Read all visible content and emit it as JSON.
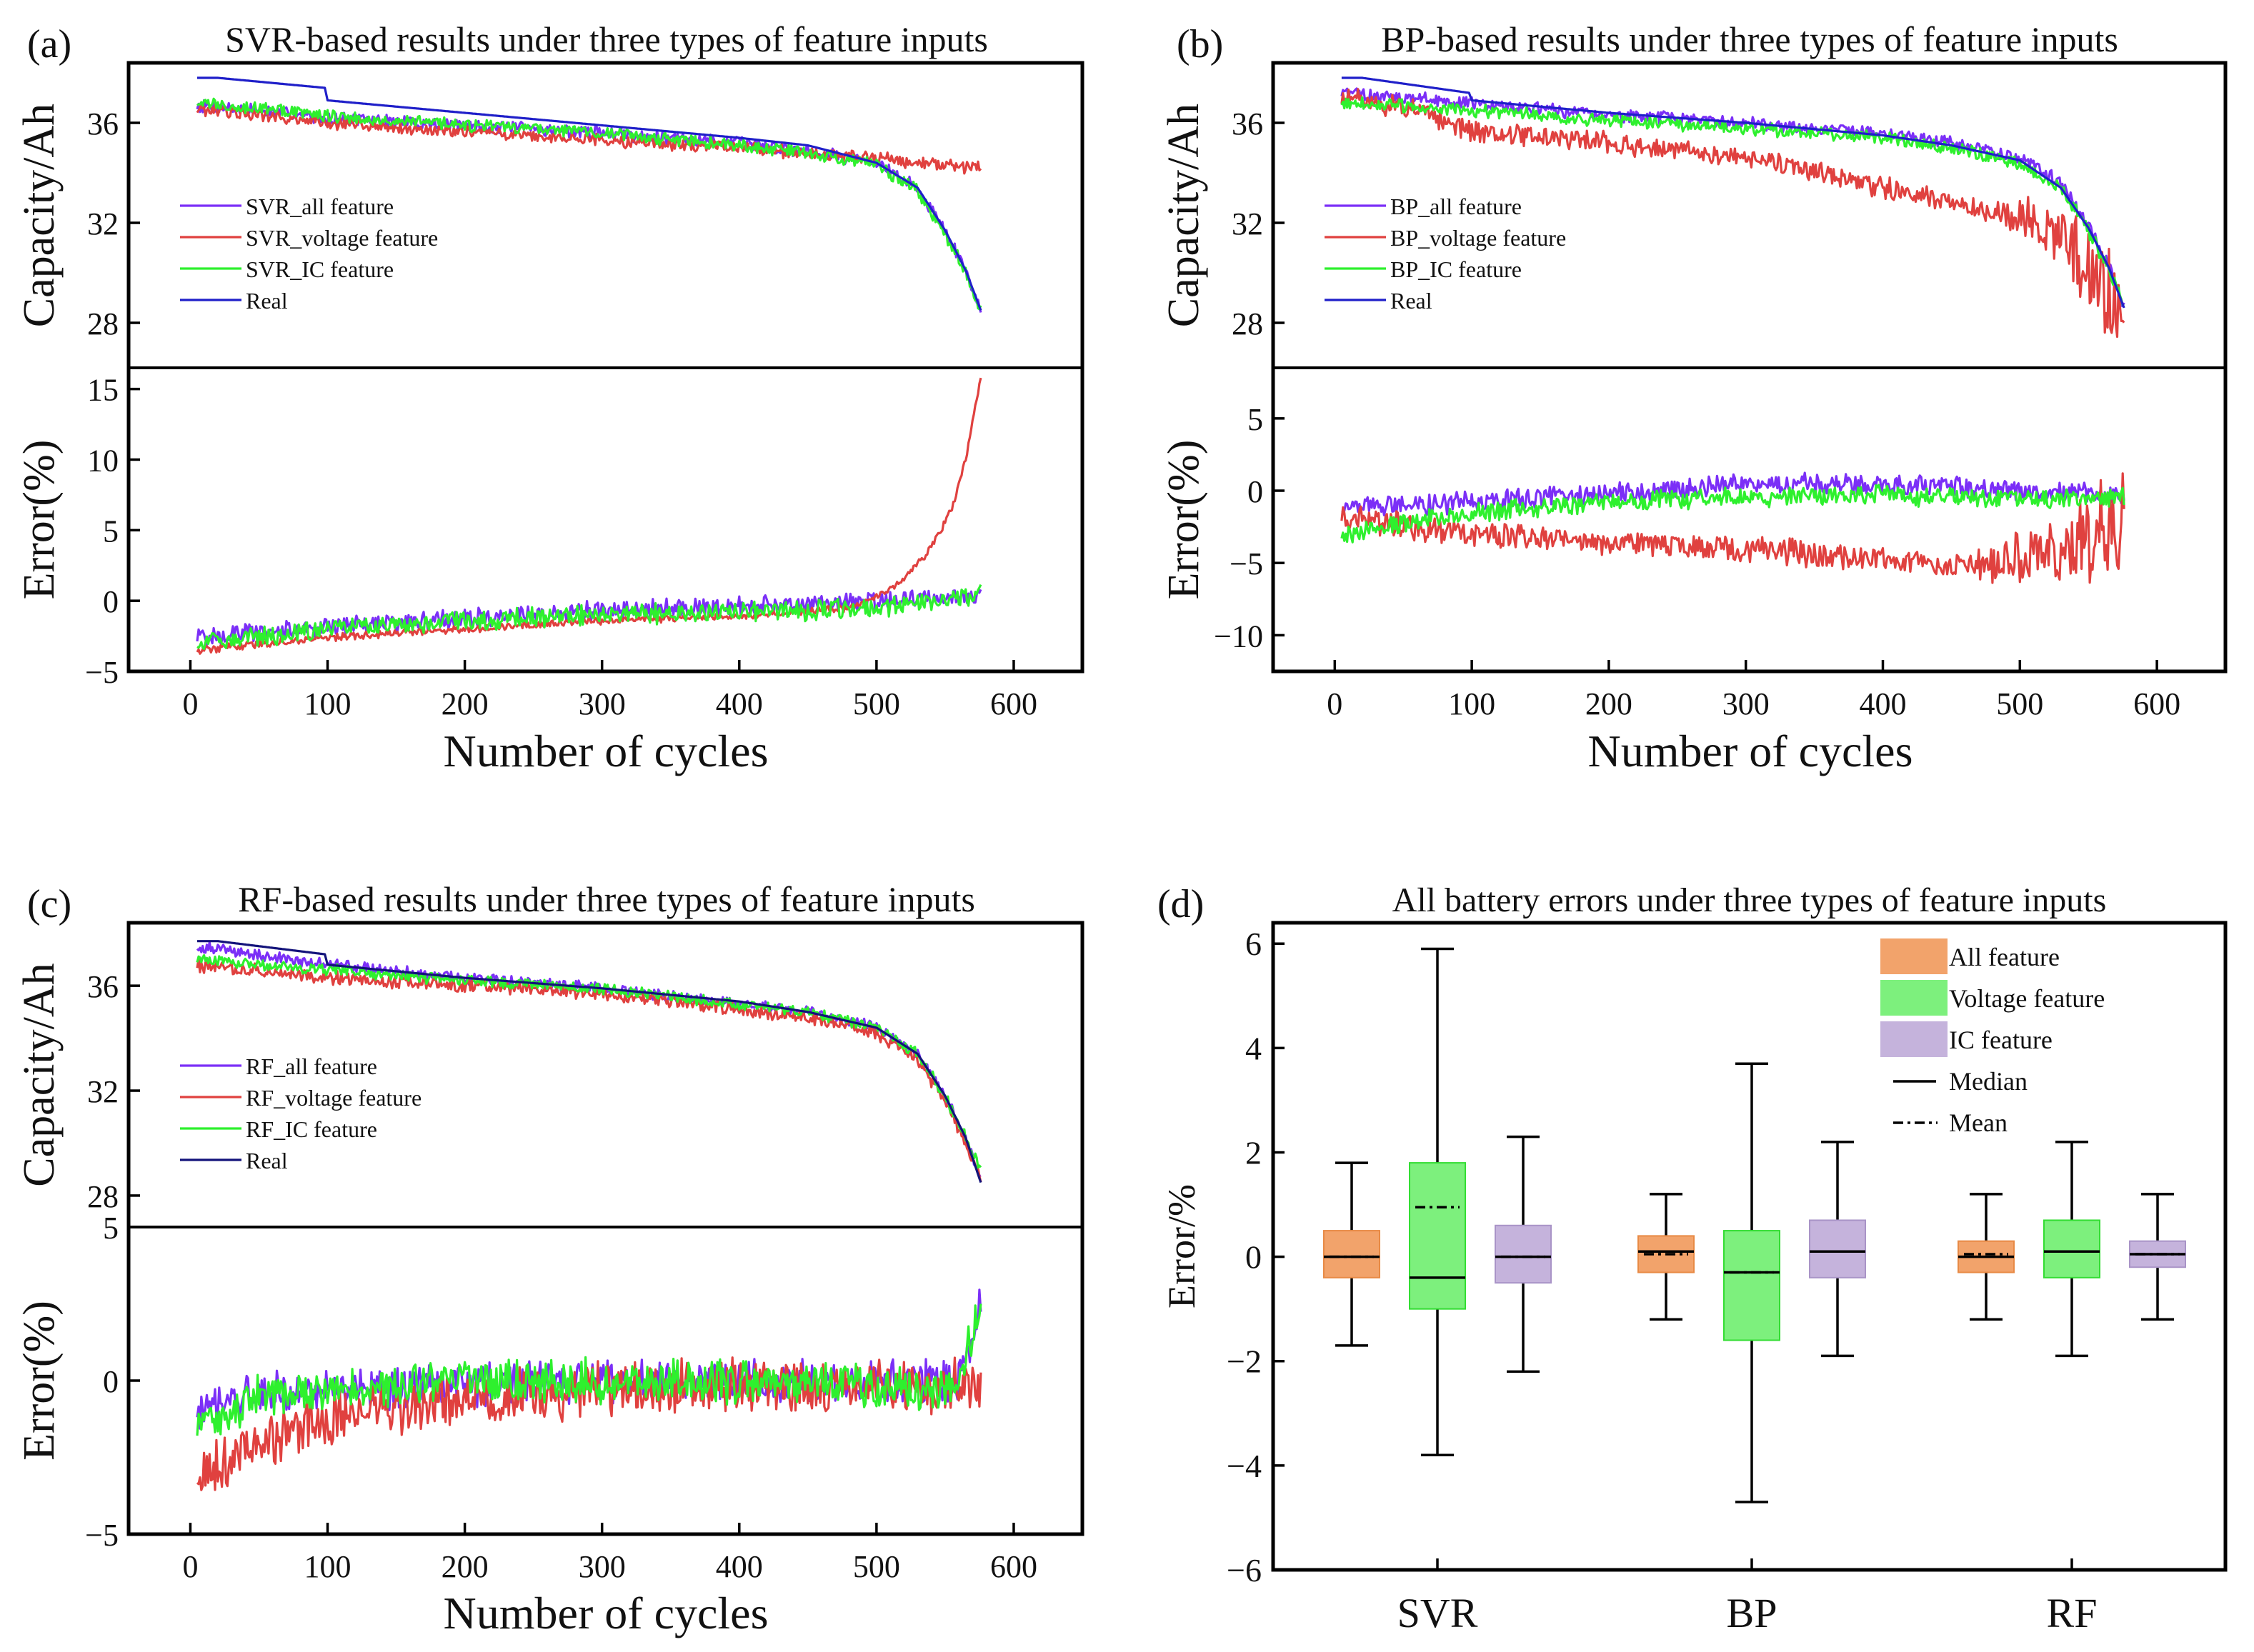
{
  "colors": {
    "purple": "#7b2ff7",
    "red": "#e0413f",
    "green": "#2ef02e",
    "blue": "#1f1fc9",
    "navy": "#13137a",
    "box_all": "#f2a36b",
    "box_all_edge": "#e88a45",
    "box_voltage": "#7df07d",
    "box_voltage_edge": "#33dd33",
    "box_ic": "#c5b3dc",
    "box_ic_edge": "#a994c7"
  },
  "chart_data": [
    {
      "id": "a",
      "panel_label": "(a)",
      "type": "line",
      "title": "SVR-based results under three types of feature inputs",
      "xlabel": "Number of cycles",
      "xlim": [
        -45,
        650
      ],
      "xticks": [
        "0",
        "100",
        "200",
        "300",
        "400",
        "500",
        "600"
      ],
      "top": {
        "ylabel": "Capacity/Ah",
        "ylim": [
          26.2,
          38.4
        ],
        "yticks": [
          "28",
          "32",
          "36"
        ],
        "legend": [
          "SVR_all feature",
          "SVR_voltage feature",
          "SVR_IC feature",
          "Real"
        ],
        "series": [
          {
            "name": "SVR_all feature",
            "color": "purple",
            "x": [
              5,
              50,
              100,
              200,
              300,
              400,
              450,
              500,
              530,
              550,
              565,
              576
            ],
            "y": [
              36.7,
              36.5,
              36.2,
              35.9,
              35.6,
              35.2,
              34.9,
              34.4,
              33.4,
              31.7,
              30.1,
              28.6
            ],
            "noise": 0.3
          },
          {
            "name": "SVR_voltage feature",
            "color": "red",
            "x": [
              5,
              50,
              100,
              200,
              300,
              400,
              450,
              500,
              530,
              550,
              576
            ],
            "y": [
              36.5,
              36.3,
              36.0,
              35.6,
              35.3,
              35.0,
              34.8,
              34.6,
              34.4,
              34.3,
              34.2
            ],
            "noise": 0.3
          },
          {
            "name": "SVR_IC feature",
            "color": "green",
            "x": [
              5,
              50,
              100,
              200,
              300,
              400,
              450,
              500,
              530,
              550,
              565,
              576
            ],
            "y": [
              36.8,
              36.6,
              36.3,
              35.9,
              35.6,
              35.1,
              34.8,
              34.3,
              33.3,
              31.6,
              30.0,
              28.5
            ],
            "noise": 0.3
          },
          {
            "name": "Real",
            "color": "blue",
            "x": [
              5,
              20,
              98,
              100,
              200,
              300,
              400,
              450,
              500,
              530,
              550,
              565,
              576
            ],
            "y": [
              37.8,
              37.8,
              37.4,
              36.9,
              36.4,
              35.9,
              35.4,
              35.1,
              34.4,
              33.4,
              31.7,
              30.1,
              28.5
            ],
            "noise": 0
          }
        ]
      },
      "bottom": {
        "ylabel": "Error(%)",
        "ylim": [
          -5,
          16.5
        ],
        "yticks": [
          "−5",
          "0",
          "5",
          "10",
          "15"
        ],
        "series": [
          {
            "name": "SVR_all feature",
            "color": "purple",
            "x": [
              5,
              100,
              200,
              300,
              400,
              500,
              576
            ],
            "y": [
              -2.6,
              -1.8,
              -1.2,
              -0.7,
              -0.4,
              0.0,
              0.4
            ],
            "noise": 0.8
          },
          {
            "name": "SVR_voltage feature",
            "color": "red",
            "x": [
              5,
              100,
              200,
              300,
              400,
              480,
              500,
              520,
              540,
              555,
              565,
              576
            ],
            "y": [
              -3.5,
              -2.6,
              -2.0,
              -1.4,
              -1.1,
              -0.5,
              0.3,
              1.5,
              3.8,
              6.5,
              10.0,
              15.8
            ],
            "noise": 0.3
          },
          {
            "name": "SVR_IC feature",
            "color": "green",
            "x": [
              5,
              100,
              200,
              300,
              400,
              500,
              576
            ],
            "y": [
              -3.0,
              -2.0,
              -1.4,
              -1.0,
              -0.8,
              -0.5,
              0.5
            ],
            "noise": 0.8
          }
        ]
      }
    },
    {
      "id": "b",
      "panel_label": "(b)",
      "type": "line",
      "title": "BP-based results under three types of feature inputs",
      "xlabel": "Number of cycles",
      "xlim": [
        -45,
        650
      ],
      "xticks": [
        "0",
        "100",
        "200",
        "300",
        "400",
        "500",
        "600"
      ],
      "top": {
        "ylabel": "Capacity/Ah",
        "ylim": [
          26.2,
          38.4
        ],
        "yticks": [
          "28",
          "32",
          "36"
        ],
        "legend": [
          "BP_all feature",
          "BP_voltage feature",
          "BP_IC feature",
          "Real"
        ],
        "series": [
          {
            "name": "BP_all feature",
            "color": "purple",
            "x": [
              5,
              100,
              200,
              300,
              400,
              450,
              500,
              530,
              550,
              565,
              576
            ],
            "y": [
              37.2,
              36.8,
              36.3,
              36.0,
              35.6,
              35.2,
              34.6,
              33.6,
              31.9,
              30.3,
              28.6
            ],
            "noise": 0.3
          },
          {
            "name": "BP_voltage feature",
            "color": "red",
            "x": [
              5,
              50,
              100,
              200,
              300,
              350,
              400,
              450,
              500,
              530,
              550,
              576
            ],
            "y": [
              37.0,
              36.6,
              35.7,
              35.2,
              34.6,
              34.0,
              33.4,
              32.8,
              32.2,
              31.5,
              30.5,
              28.5
            ],
            "noise": 0.5,
            "noise_tail": [
              480,
              2.6
            ]
          },
          {
            "name": "BP_IC feature",
            "color": "green",
            "x": [
              5,
              100,
              200,
              300,
              400,
              450,
              500,
              530,
              550,
              565,
              576
            ],
            "y": [
              36.8,
              36.5,
              36.1,
              35.8,
              35.4,
              35.0,
              34.4,
              33.4,
              31.7,
              30.1,
              28.6
            ],
            "noise": 0.3
          },
          {
            "name": "Real",
            "color": "blue",
            "x": [
              5,
              20,
              98,
              100,
              200,
              300,
              400,
              450,
              500,
              530,
              550,
              565,
              576
            ],
            "y": [
              37.8,
              37.8,
              37.2,
              36.9,
              36.4,
              36.0,
              35.5,
              35.1,
              34.5,
              33.4,
              31.8,
              30.2,
              28.6
            ],
            "noise": 0
          }
        ]
      },
      "bottom": {
        "ylabel": "Error(%)",
        "ylim": [
          -12.5,
          8.5
        ],
        "yticks": [
          "−10",
          "−5",
          "0",
          "5"
        ],
        "series": [
          {
            "name": "BP_all feature",
            "color": "purple",
            "x": [
              5,
              100,
              200,
              300,
              400,
              500,
              576
            ],
            "y": [
              -1.2,
              -0.8,
              -0.2,
              0.5,
              0.5,
              0.0,
              -0.3
            ],
            "noise": 0.8
          },
          {
            "name": "BP_voltage feature",
            "color": "red",
            "x": [
              5,
              100,
              200,
              300,
              400,
              450,
              500,
              576
            ],
            "y": [
              -1.8,
              -3.0,
              -3.5,
              -4.0,
              -4.8,
              -5.2,
              -5.0,
              -2.0
            ],
            "noise": 1.0,
            "noise_tail": [
              460,
              4.8
            ]
          },
          {
            "name": "BP_IC feature",
            "color": "green",
            "x": [
              5,
              100,
              200,
              300,
              400,
              500,
              576
            ],
            "y": [
              -3.0,
              -1.5,
              -0.8,
              -0.4,
              -0.3,
              -0.6,
              -0.5
            ],
            "noise": 0.8
          }
        ]
      }
    },
    {
      "id": "c",
      "panel_label": "(c)",
      "type": "line",
      "title": "RF-based results under three types of feature inputs",
      "xlabel": "Number of cycles",
      "xlim": [
        -45,
        650
      ],
      "xticks": [
        "0",
        "100",
        "200",
        "300",
        "400",
        "500",
        "600"
      ],
      "top": {
        "ylabel": "Capacity/Ah",
        "ylim": [
          26.8,
          38.4
        ],
        "yticks": [
          "28",
          "32",
          "36"
        ],
        "legend": [
          "RF_all feature",
          "RF_voltage feature",
          "RF_IC feature",
          "Real"
        ],
        "series": [
          {
            "name": "RF_all feature",
            "color": "purple",
            "x": [
              5,
              100,
              200,
              300,
              400,
              450,
              500,
              530,
              550,
              565,
              576
            ],
            "y": [
              37.5,
              36.8,
              36.3,
              35.9,
              35.3,
              35.0,
              34.4,
              33.4,
              31.8,
              30.2,
              28.6
            ],
            "noise": 0.25
          },
          {
            "name": "RF_voltage feature",
            "color": "red",
            "x": [
              5,
              100,
              200,
              300,
              400,
              450,
              500,
              530,
              550,
              565,
              576
            ],
            "y": [
              36.8,
              36.3,
              36.0,
              35.7,
              35.1,
              34.8,
              34.2,
              33.2,
              31.6,
              30.0,
              28.6
            ],
            "noise": 0.3
          },
          {
            "name": "RF_IC feature",
            "color": "green",
            "x": [
              5,
              100,
              200,
              300,
              400,
              450,
              500,
              530,
              550,
              565,
              576
            ],
            "y": [
              37.0,
              36.6,
              36.2,
              35.9,
              35.3,
              35.0,
              34.4,
              33.4,
              31.8,
              30.2,
              29.0
            ],
            "noise": 0.25
          },
          {
            "name": "Real",
            "color": "navy",
            "x": [
              5,
              20,
              98,
              100,
              200,
              300,
              400,
              450,
              500,
              530,
              550,
              565,
              576
            ],
            "y": [
              37.7,
              37.7,
              37.2,
              36.8,
              36.3,
              35.9,
              35.4,
              35.0,
              34.4,
              33.4,
              31.8,
              30.2,
              28.5
            ],
            "noise": 0
          }
        ]
      },
      "bottom": {
        "ylabel": "Error(%)",
        "ylim": [
          -5,
          5
        ],
        "yticks": [
          "−5",
          "0",
          "5"
        ],
        "series": [
          {
            "name": "RF_all feature",
            "color": "purple",
            "x": [
              5,
              50,
              100,
              200,
              300,
              400,
              500,
              560,
              576
            ],
            "y": [
              -1.0,
              -0.4,
              -0.3,
              -0.1,
              0.0,
              0.0,
              -0.1,
              0.0,
              2.5
            ],
            "noise": 0.8
          },
          {
            "name": "RF_voltage feature",
            "color": "red",
            "x": [
              5,
              50,
              100,
              200,
              300,
              400,
              500,
              576
            ],
            "y": [
              -3.0,
              -2.0,
              -1.2,
              -0.6,
              -0.3,
              -0.2,
              -0.2,
              -0.1
            ],
            "noise": 1.0
          },
          {
            "name": "RF_IC feature",
            "color": "green",
            "x": [
              5,
              50,
              100,
              200,
              300,
              400,
              500,
              560,
              576
            ],
            "y": [
              -1.6,
              -0.5,
              -0.3,
              0.0,
              0.0,
              0.0,
              -0.2,
              -0.2,
              2.8
            ],
            "noise": 0.8
          }
        ]
      }
    },
    {
      "id": "d",
      "panel_label": "(d)",
      "type": "box",
      "title": "All battery errors under three types of feature inputs",
      "ylabel": "Error/%",
      "ylim": [
        -6,
        6.4
      ],
      "yticks": [
        {
          "label": "−6",
          "v": -6
        },
        {
          "label": "−4",
          "v": -4
        },
        {
          "label": "−2",
          "v": -2
        },
        {
          "label": "0",
          "v": 0
        },
        {
          "label": "2",
          "v": 2
        },
        {
          "label": "4",
          "v": 4
        },
        {
          "label": "6",
          "v": 6
        }
      ],
      "categories": [
        "SVR",
        "BP",
        "RF"
      ],
      "legend": [
        "All feature",
        "Voltage feature",
        "IC feature",
        "Median",
        "Mean"
      ],
      "groups": [
        {
          "category": "SVR",
          "boxes": [
            {
              "series": "All feature",
              "color": "box_all",
              "edge": "box_all_edge",
              "whisker_low": -1.7,
              "q1": -0.4,
              "median": 0.0,
              "q3": 0.5,
              "whisker_high": 1.8,
              "mean": 0.0
            },
            {
              "series": "Voltage feature",
              "color": "box_voltage",
              "edge": "box_voltage_edge",
              "whisker_low": -3.8,
              "q1": -1.0,
              "median": -0.4,
              "q3": 1.8,
              "whisker_high": 5.9,
              "mean": 0.95
            },
            {
              "series": "IC feature",
              "color": "box_ic",
              "edge": "box_ic_edge",
              "whisker_low": -2.2,
              "q1": -0.5,
              "median": 0.0,
              "q3": 0.6,
              "whisker_high": 2.3,
              "mean": 0.0
            }
          ]
        },
        {
          "category": "BP",
          "boxes": [
            {
              "series": "All feature",
              "color": "box_all",
              "edge": "box_all_edge",
              "whisker_low": -1.2,
              "q1": -0.3,
              "median": 0.1,
              "q3": 0.4,
              "whisker_high": 1.2,
              "mean": 0.05
            },
            {
              "series": "Voltage feature",
              "color": "box_voltage",
              "edge": "box_voltage_edge",
              "whisker_low": -4.7,
              "q1": -1.6,
              "median": -0.3,
              "q3": 0.5,
              "whisker_high": 3.7,
              "mean": -0.3
            },
            {
              "series": "IC feature",
              "color": "box_ic",
              "edge": "box_ic_edge",
              "whisker_low": -1.9,
              "q1": -0.4,
              "median": 0.1,
              "q3": 0.7,
              "whisker_high": 2.2,
              "mean": 0.1
            }
          ]
        },
        {
          "category": "RF",
          "boxes": [
            {
              "series": "All feature",
              "color": "box_all",
              "edge": "box_all_edge",
              "whisker_low": -1.2,
              "q1": -0.3,
              "median": 0.0,
              "q3": 0.3,
              "whisker_high": 1.2,
              "mean": 0.05
            },
            {
              "series": "Voltage feature",
              "color": "box_voltage",
              "edge": "box_voltage_edge",
              "whisker_low": -1.9,
              "q1": -0.4,
              "median": 0.1,
              "q3": 0.7,
              "whisker_high": 2.2,
              "mean": 0.1
            },
            {
              "series": "IC feature",
              "color": "box_ic",
              "edge": "box_ic_edge",
              "whisker_low": -1.2,
              "q1": -0.2,
              "median": 0.05,
              "q3": 0.3,
              "whisker_high": 1.2,
              "mean": 0.05
            }
          ]
        }
      ]
    }
  ]
}
